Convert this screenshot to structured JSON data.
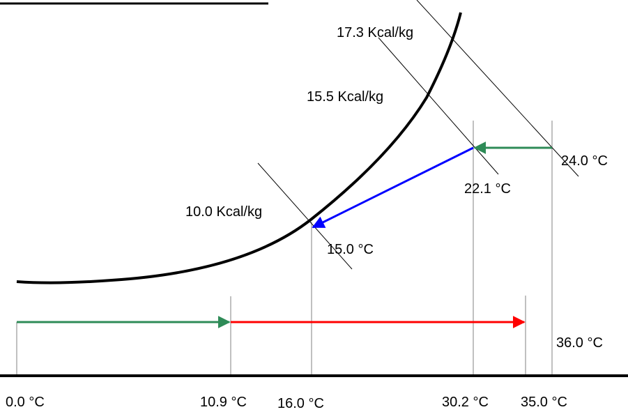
{
  "colors": {
    "curve": "#000000",
    "thin_line": "#000000",
    "guide_line": "#808080",
    "green_arrow": "#2e8b57",
    "red_arrow": "#ff0000",
    "blue_arrow": "#0000ff"
  },
  "enthalpy_labels": {
    "top": "17.3 Kcal/kg",
    "middle": "15.5 Kcal/kg",
    "bottom": "10.0 Kcal/kg"
  },
  "wet_bulb_labels": {
    "a": "24.0 °C",
    "b": "22.1 °C",
    "c": "15.0 °C"
  },
  "side_label": "36.0 °C",
  "axis_labels": [
    "0.0 °C",
    "10.9 °C",
    "16.0 °C",
    "30.2 °C",
    "35.0 °C"
  ]
}
